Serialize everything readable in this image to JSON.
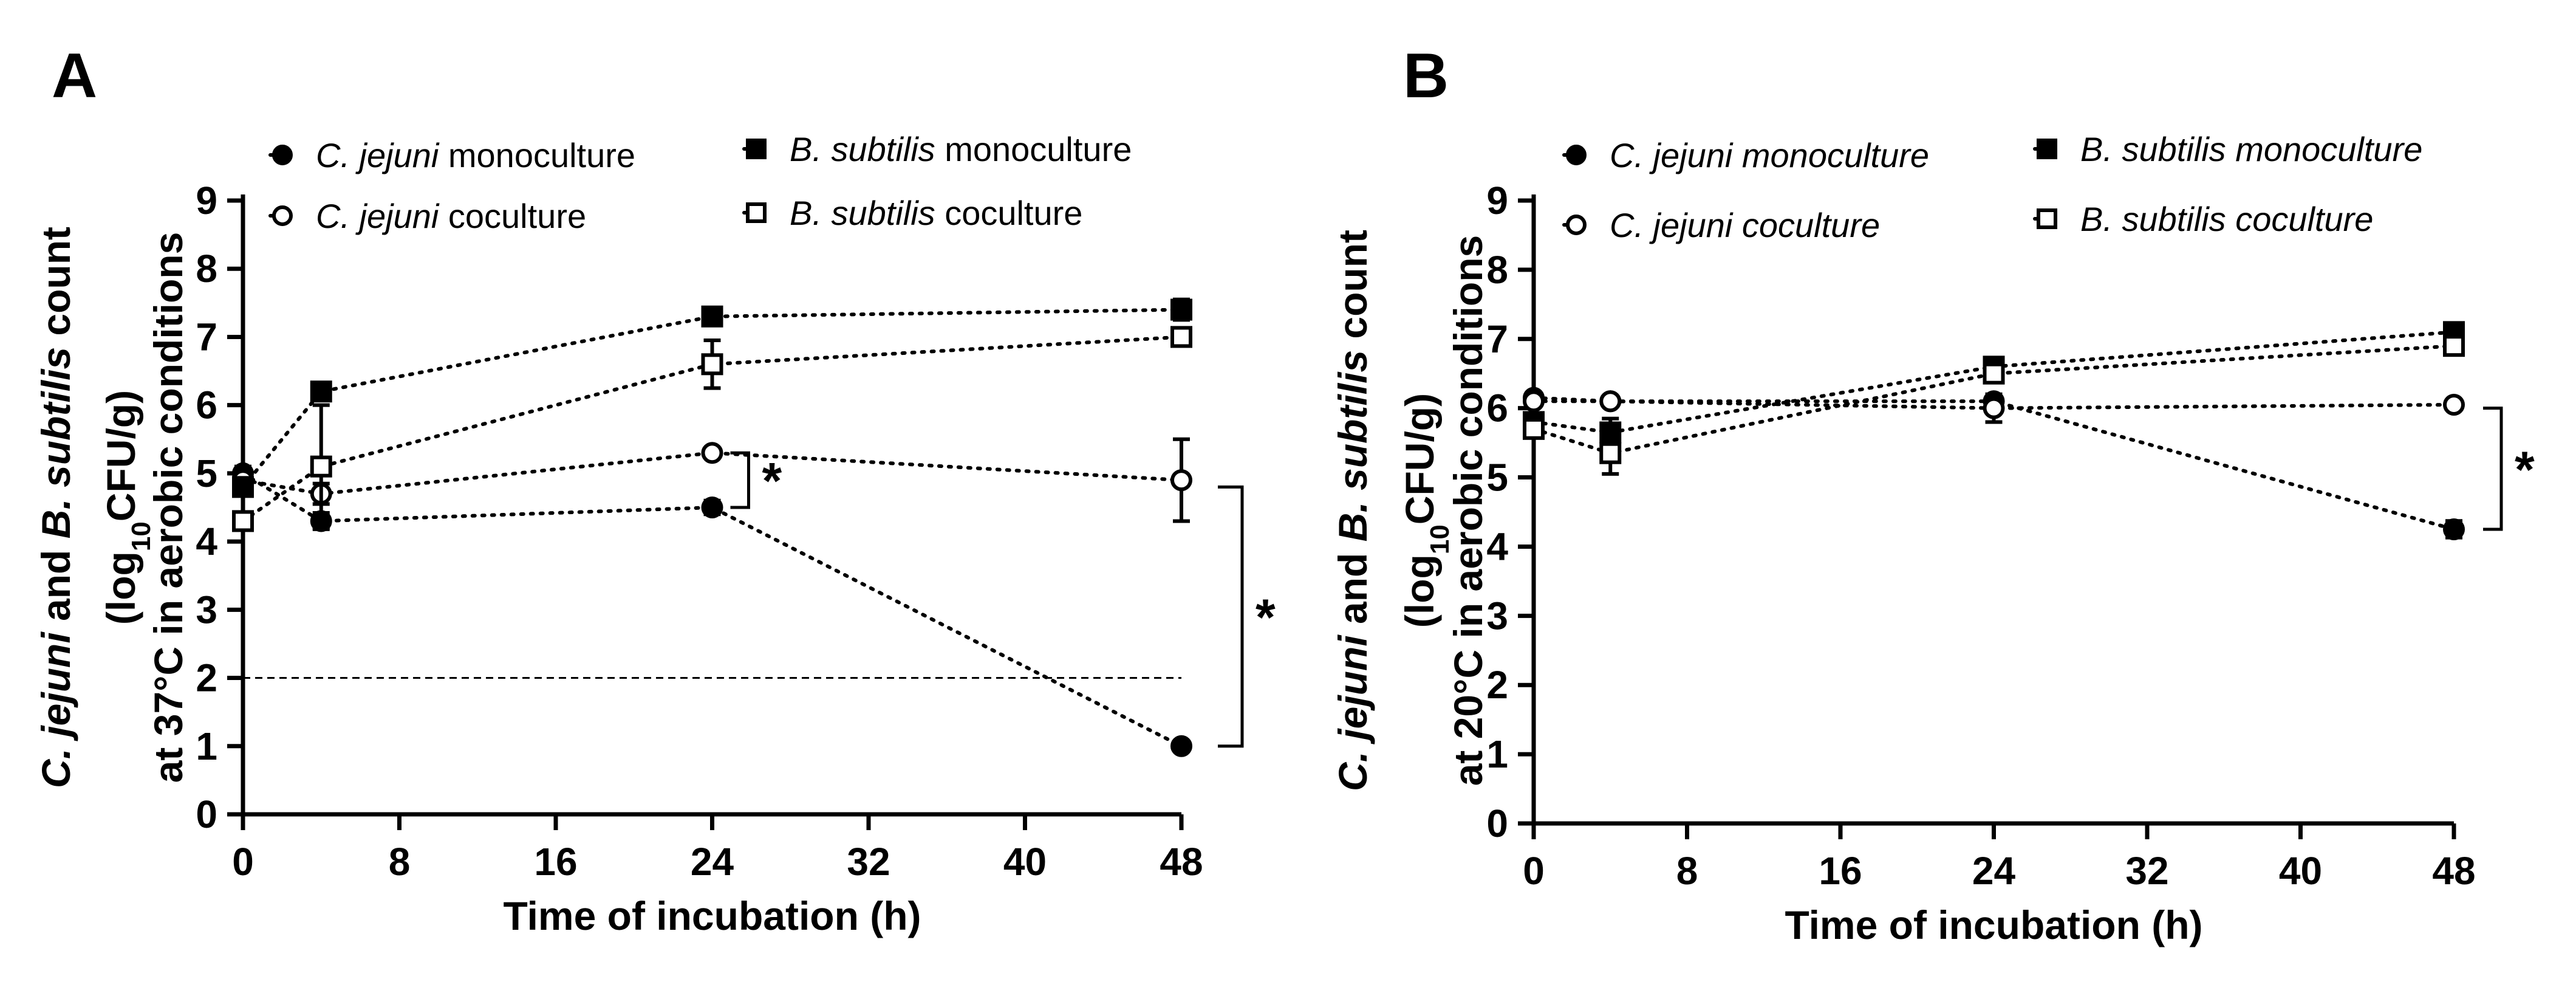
{
  "chart_data": [
    {
      "type": "line",
      "panel_label": "A",
      "ylabel_lines": [
        [
          "C. jejuni",
          " and ",
          "B. subtilis",
          " count"
        ],
        [
          "(log",
          "10",
          "CFU/g)"
        ],
        [
          "at 37°C in aerobic conditions"
        ]
      ],
      "xlabel": "Time of incubation (h)",
      "xlim": [
        0,
        48
      ],
      "ylim": [
        0,
        9
      ],
      "xticks": [
        0,
        8,
        16,
        24,
        32,
        40,
        48
      ],
      "yticks": [
        0,
        1,
        2,
        3,
        4,
        5,
        6,
        7,
        8,
        9
      ],
      "detection_limit": 2,
      "legend_style": "regular",
      "series": [
        {
          "species": "C. jejuni",
          "condition": "monoculture",
          "marker": "filled-circle",
          "x": [
            0,
            4,
            24,
            48
          ],
          "y": [
            5.0,
            4.3,
            4.5,
            1.0
          ],
          "err": [
            0.1,
            0.12,
            0.1,
            0
          ]
        },
        {
          "species": "C. jejuni",
          "condition": "coculture",
          "marker": "open-circle",
          "x": [
            0,
            4,
            24,
            48
          ],
          "y": [
            4.9,
            4.7,
            5.3,
            4.9
          ],
          "err": [
            0.1,
            0.15,
            0.05,
            0.6
          ]
        },
        {
          "species": "B. subtilis",
          "condition": "monoculture",
          "marker": "filled-square",
          "x": [
            0,
            4,
            24,
            48
          ],
          "y": [
            4.8,
            6.2,
            7.3,
            7.4
          ],
          "err": [
            0.1,
            0.05,
            0.1,
            0.15
          ]
        },
        {
          "species": "B. subtilis",
          "condition": "coculture",
          "marker": "open-square",
          "x": [
            0,
            4,
            24,
            48
          ],
          "y": [
            4.3,
            5.1,
            6.6,
            7.0
          ],
          "err": [
            0.05,
            0.9,
            0.35,
            0.05
          ]
        }
      ],
      "significance": [
        {
          "x": 24,
          "y_low": 4.5,
          "y_high": 5.3,
          "label": "*"
        },
        {
          "x": 48,
          "y_low": 1.0,
          "y_high": 4.8,
          "label": "*"
        }
      ]
    },
    {
      "type": "line",
      "panel_label": "B",
      "ylabel_lines": [
        [
          "C. jejuni",
          " and ",
          "B. subtilis",
          " count"
        ],
        [
          "(log",
          "10",
          "CFU/g)"
        ],
        [
          "at 20°C in aerobic conditions"
        ]
      ],
      "xlabel": "Time of incubation (h)",
      "xlim": [
        0,
        48
      ],
      "ylim": [
        0,
        9
      ],
      "xticks": [
        0,
        8,
        16,
        24,
        32,
        40,
        48
      ],
      "yticks": [
        0,
        1,
        2,
        3,
        4,
        5,
        6,
        7,
        8,
        9
      ],
      "detection_limit": null,
      "legend_style": "italic",
      "series": [
        {
          "species": "C. jejuni",
          "condition": "monoculture",
          "marker": "filled-circle",
          "x": [
            0,
            4,
            24,
            48
          ],
          "y": [
            6.15,
            6.1,
            6.1,
            4.25
          ],
          "err": [
            0.05,
            0.05,
            0.1,
            0.12
          ]
        },
        {
          "species": "C. jejuni",
          "condition": "coculture",
          "marker": "open-circle",
          "x": [
            0,
            4,
            24,
            48
          ],
          "y": [
            6.1,
            6.1,
            6.0,
            6.05
          ],
          "err": [
            0.05,
            0.05,
            0.2,
            0.05
          ]
        },
        {
          "species": "B. subtilis",
          "condition": "monoculture",
          "marker": "filled-square",
          "x": [
            0,
            4,
            24,
            48
          ],
          "y": [
            5.8,
            5.65,
            6.6,
            7.1
          ],
          "err": [
            0.1,
            0.2,
            0.1,
            0.05
          ]
        },
        {
          "species": "B. subtilis",
          "condition": "coculture",
          "marker": "open-square",
          "x": [
            0,
            4,
            24,
            48
          ],
          "y": [
            5.7,
            5.35,
            6.5,
            6.9
          ],
          "err": [
            0.1,
            0.3,
            0.1,
            0.05
          ]
        }
      ],
      "significance": [
        {
          "x": 48,
          "y_low": 4.25,
          "y_high": 6.0,
          "label": "*"
        }
      ]
    }
  ]
}
